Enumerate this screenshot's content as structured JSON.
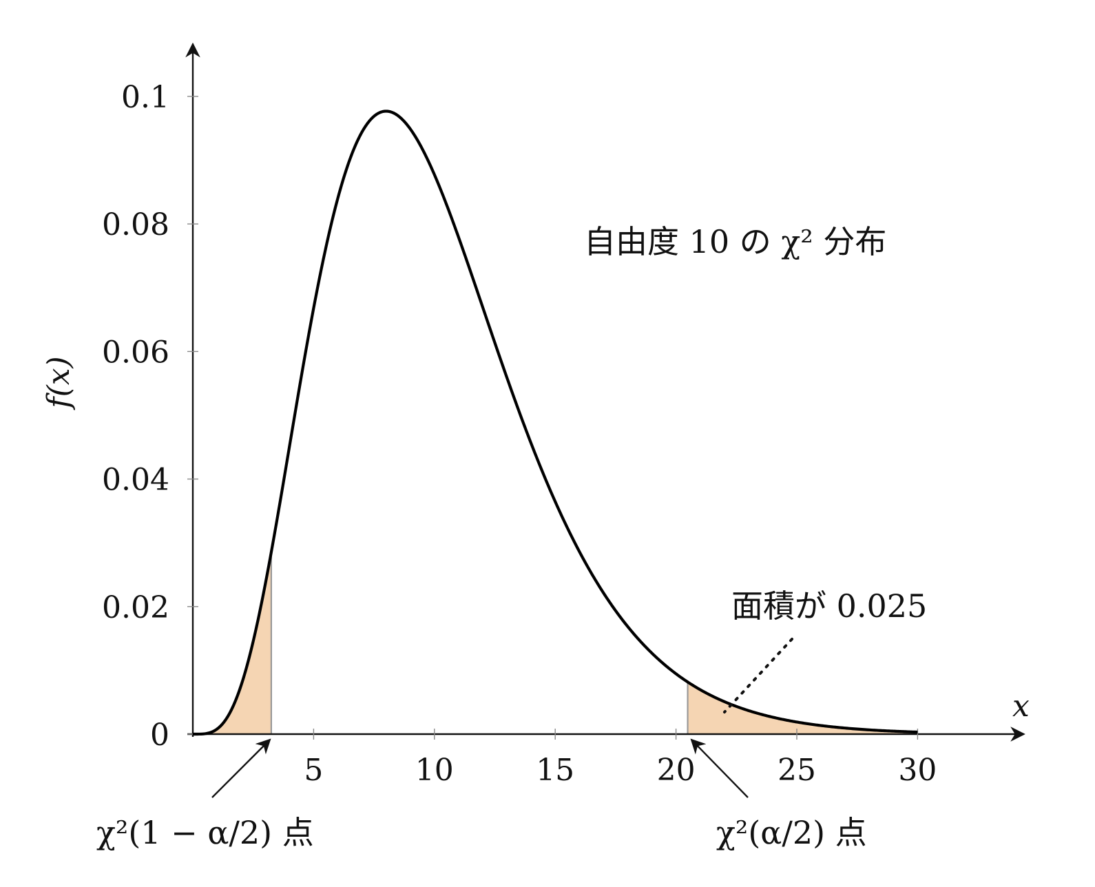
{
  "chart_data": {
    "type": "area",
    "title": "",
    "xlabel": "x",
    "ylabel": "f(x)",
    "xlim": [
      0,
      34
    ],
    "ylim": [
      0,
      0.108
    ],
    "x_ticks": [
      5,
      10,
      15,
      20,
      25,
      30
    ],
    "x_tick_labels": [
      "5",
      "10",
      "15",
      "20",
      "25",
      "30"
    ],
    "y_ticks": [
      0,
      0.02,
      0.04,
      0.06,
      0.08,
      0.1
    ],
    "y_tick_labels": [
      "0",
      "0.02",
      "0.04",
      "0.06",
      "0.08",
      "0.1"
    ],
    "grid": false,
    "series": [
      {
        "kind": "density",
        "distribution": "chi-square",
        "degrees_of_freedom": 10,
        "x": [
          0,
          1,
          2,
          3,
          4,
          5,
          6,
          7,
          8,
          9,
          10,
          11,
          12,
          13,
          14,
          15,
          16,
          17,
          18,
          19,
          20,
          21,
          22,
          23,
          24,
          25,
          26,
          27,
          28,
          29,
          30
        ],
        "y": [
          0,
          0.0008,
          0.0077,
          0.0235,
          0.0451,
          0.0668,
          0.084,
          0.0941,
          0.0977,
          0.0953,
          0.0877,
          0.0775,
          0.0663,
          0.0551,
          0.0446,
          0.0355,
          0.0278,
          0.0213,
          0.0162,
          0.0121,
          0.009,
          0.0066,
          0.0048,
          0.0034,
          0.0024,
          0.0017,
          0.0012,
          0.0008,
          0.0006,
          0.0004,
          0.0003
        ],
        "color": "#000000"
      }
    ],
    "shaded_regions": [
      {
        "x_from": 0,
        "x_to": 3.247,
        "fill": "#f5d5b3",
        "edge": "#999999"
      },
      {
        "x_from": 20.483,
        "x_to": 30,
        "fill": "#f5d5b3",
        "edge": "#999999"
      }
    ],
    "annotations": {
      "distribution_label": "自由度 10 の χ² 分布",
      "area_label": "面積が 0.025",
      "lower_point_label": "χ²(1 − α/2) 点",
      "upper_point_label": "χ²(α/2) 点"
    },
    "critical_values": {
      "lower": 3.247,
      "upper": 20.483
    }
  }
}
